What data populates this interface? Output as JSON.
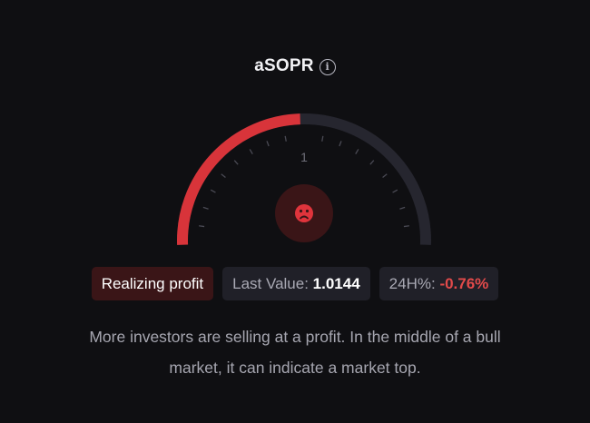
{
  "widget": {
    "title": "aSOPR",
    "info_glyph": "i",
    "info_icon": "info-circle-icon"
  },
  "gauge": {
    "center_label": "1",
    "value_fraction": 0.49,
    "accent_color": "#d8343a",
    "track_color": "#26262f",
    "face_icon": "sad-face-icon"
  },
  "status": {
    "signal_label": "Realizing profit",
    "last_value_label": "Last Value:",
    "last_value": "1.0144",
    "change_label": "24H%:",
    "change_value": "-0.76%",
    "change_color": "#e24a4a"
  },
  "description": "More investors are selling at a profit. In the middle of a bull market, it can indicate a market top."
}
